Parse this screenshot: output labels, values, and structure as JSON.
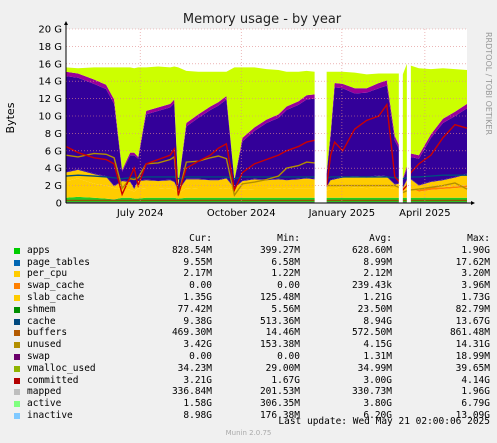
{
  "chart_data": {
    "type": "area",
    "title": "Memory usage - by year",
    "ylabel": "Bytes",
    "ylim": [
      0,
      20
    ],
    "y_unit": "G",
    "y_ticks": [
      "0",
      "2 G",
      "4 G",
      "6 G",
      "8 G",
      "10 G",
      "12 G",
      "14 G",
      "16 G",
      "18 G",
      "20 G"
    ],
    "x_ticks": [
      "July 2024",
      "October 2024",
      "January 2025",
      "April 2025"
    ],
    "x_tick_pos": [
      0.185,
      0.437,
      0.688,
      0.895
    ],
    "grid": true,
    "legend_position": "bottom",
    "side_text": "RRDTOOL / TOBI OETIKER",
    "x": [
      0.0,
      0.03,
      0.07,
      0.1,
      0.12,
      0.14,
      0.16,
      0.17,
      0.18,
      0.2,
      0.23,
      0.26,
      0.27,
      0.28,
      0.3,
      0.33,
      0.36,
      0.38,
      0.4,
      0.42,
      0.44,
      0.47,
      0.5,
      0.53,
      0.55,
      0.58,
      0.6,
      0.62,
      0.63,
      0.65,
      0.66,
      0.67,
      0.69,
      0.72,
      0.75,
      0.78,
      0.8,
      0.82,
      0.83,
      0.84,
      0.85,
      0.86,
      0.88,
      0.91,
      0.94,
      0.97,
      1.0
    ],
    "gaps": [
      [
        0.62,
        0.65
      ],
      [
        0.83,
        0.84
      ],
      [
        0.85,
        0.86
      ]
    ],
    "series": [
      {
        "name": "apps",
        "color": "#22cc22",
        "values": [
          0.6,
          0.7,
          0.6,
          0.5,
          0.4,
          0.6,
          0.6,
          0.5,
          0.5,
          0.6,
          0.6,
          0.6,
          0.6,
          0.5,
          0.6,
          0.6,
          0.6,
          0.6,
          0.6,
          0.6,
          0.6,
          0.6,
          0.6,
          0.6,
          0.6,
          0.6,
          0.6,
          0.6,
          0.6,
          0.6,
          0.6,
          0.6,
          0.6,
          0.6,
          0.6,
          0.6,
          0.6,
          0.6,
          0.6,
          0.6,
          0.6,
          0.6,
          0.6,
          0.6,
          0.6,
          0.6,
          0.6
        ]
      },
      {
        "name": "page_tables",
        "color": "#0066b3",
        "values": [
          0.01,
          0.01,
          0.01,
          0.01,
          0.01,
          0.01,
          0.01,
          0.01,
          0.01,
          0.01,
          0.01,
          0.01,
          0.01,
          0.01,
          0.01,
          0.01,
          0.01,
          0.01,
          0.01,
          0.01,
          0.01,
          0.01,
          0.01,
          0.01,
          0.01,
          0.01,
          0.01,
          0.01,
          0.01,
          0.01,
          0.01,
          0.01,
          0.01,
          0.01,
          0.01,
          0.01,
          0.01,
          0.01,
          0.01,
          0.01,
          0.01,
          0.01,
          0.01,
          0.01,
          0.01,
          0.01,
          0.01
        ]
      },
      {
        "name": "per_cpu",
        "color": "#ffcc00",
        "values": [
          1.9,
          2.1,
          1.6,
          1.5,
          1.3,
          1.0,
          0.9,
          0.8,
          1.2,
          1.0,
          1.0,
          1.1,
          0.9,
          0.6,
          1.1,
          1.0,
          1.0,
          1.0,
          1.1,
          0.9,
          0.9,
          1.0,
          1.0,
          1.1,
          1.0,
          1.1,
          1.1,
          1.1,
          1.1,
          0.8,
          1.0,
          1.0,
          1.3,
          1.2,
          1.1,
          1.2,
          1.2,
          1.0,
          1.0,
          0.8,
          1.0,
          1.1,
          0.7,
          0.9,
          1.0,
          1.1,
          1.2
        ]
      },
      {
        "name": "swap_cache",
        "color": "#ff8000",
        "values": [
          0.0,
          0.0,
          0.0,
          0.0,
          0.0,
          0.0,
          0.0,
          0.0,
          0.0,
          0.0,
          0.0,
          0.0,
          0.0,
          0.0,
          0.0,
          0.0,
          0.0,
          0.0,
          0.0,
          0.0,
          0.0,
          0.0,
          0.0,
          0.0,
          0.0,
          0.0,
          0.0,
          0.0,
          0.0,
          0.0,
          0.0,
          0.0,
          0.0,
          0.0,
          0.0,
          0.0,
          0.0,
          0.0,
          0.0,
          0.0,
          0.0,
          0.0,
          0.2,
          0.3,
          0.2,
          0.2,
          0.2
        ]
      },
      {
        "name": "slab_cache",
        "color": "#ffcc00",
        "values": [
          1.0,
          1.0,
          1.1,
          1.0,
          0.2,
          0.9,
          0.9,
          0.3,
          0.8,
          1.0,
          0.9,
          0.9,
          0.9,
          0.3,
          1.0,
          1.1,
          1.0,
          1.0,
          1.1,
          0.2,
          1.0,
          1.1,
          1.0,
          1.0,
          1.0,
          1.0,
          1.1,
          1.0,
          1.0,
          0.4,
          1.0,
          1.1,
          1.0,
          1.2,
          1.2,
          1.3,
          1.2,
          0.5,
          0.6,
          0.3,
          1.0,
          1.0,
          0.5,
          0.6,
          0.8,
          1.0,
          1.3
        ]
      },
      {
        "name": "shmem",
        "color": "#330099",
        "values": [
          0.08,
          0.08,
          0.08,
          0.08,
          0.08,
          0.08,
          0.08,
          0.08,
          0.08,
          0.08,
          0.08,
          0.08,
          0.08,
          0.08,
          0.08,
          0.08,
          0.08,
          0.08,
          0.08,
          0.08,
          0.08,
          0.08,
          0.08,
          0.08,
          0.08,
          0.08,
          0.08,
          0.08,
          0.08,
          0.08,
          0.08,
          0.08,
          0.08,
          0.08,
          0.08,
          0.08,
          0.08,
          0.08,
          0.08,
          0.08,
          0.08,
          0.08,
          0.08,
          0.08,
          0.08,
          0.08,
          0.08
        ]
      },
      {
        "name": "cache",
        "color": "#330099",
        "values": [
          11.0,
          10.5,
          10.3,
          10.0,
          9.4,
          1.0,
          3.0,
          3.8,
          2.5,
          7.5,
          8.0,
          8.3,
          9.0,
          0.5,
          6.0,
          7.0,
          8.0,
          8.5,
          9.0,
          0.8,
          4.5,
          5.5,
          6.5,
          7.0,
          8.0,
          8.5,
          9.0,
          9.2,
          9.2,
          1.5,
          5.0,
          10.5,
          10.2,
          9.5,
          9.7,
          10.0,
          10.4,
          5.0,
          4.0,
          0.8,
          1.2,
          2.5,
          3.0,
          5.0,
          6.5,
          7.0,
          7.5
        ]
      },
      {
        "name": "buffers",
        "color": "#990099",
        "values": [
          0.5,
          0.5,
          0.5,
          0.5,
          0.5,
          0.2,
          0.3,
          0.3,
          0.2,
          0.4,
          0.4,
          0.4,
          0.4,
          0.1,
          0.4,
          0.4,
          0.4,
          0.4,
          0.4,
          0.1,
          0.4,
          0.4,
          0.4,
          0.4,
          0.4,
          0.4,
          0.5,
          0.5,
          0.5,
          0.2,
          0.5,
          0.5,
          0.5,
          0.6,
          0.5,
          0.6,
          0.6,
          0.5,
          0.4,
          0.2,
          0.3,
          0.4,
          0.4,
          0.4,
          0.5,
          0.5,
          0.5
        ]
      },
      {
        "name": "unused",
        "color": "#ccff00",
        "values": [
          0.5,
          0.6,
          1.4,
          2.0,
          3.7,
          11.8,
          9.8,
          9.7,
          10.3,
          5.0,
          4.7,
          4.2,
          3.8,
          13.5,
          6.0,
          4.9,
          4.0,
          3.5,
          2.8,
          12.9,
          8.1,
          6.9,
          5.8,
          5.1,
          4.0,
          3.4,
          2.8,
          2.6,
          2.6,
          11.5,
          6.9,
          1.3,
          1.4,
          1.8,
          1.6,
          1.1,
          0.8,
          7.2,
          8.2,
          12.0,
          11.8,
          10.1,
          10.0,
          7.5,
          5.8,
          4.9,
          3.9
        ]
      },
      {
        "name": "swap",
        "color": "#ff0000",
        "values": [
          0,
          0,
          0,
          0,
          0,
          0,
          0,
          0,
          0,
          0,
          0,
          0,
          0,
          0,
          0,
          0,
          0,
          0,
          0,
          0,
          0,
          0,
          0,
          0,
          0,
          0,
          0,
          0,
          0,
          0,
          0,
          0,
          0,
          0,
          0,
          0,
          0,
          0,
          0,
          0,
          0,
          0,
          0,
          0,
          0,
          0,
          0
        ]
      },
      {
        "name": "vmalloc_used",
        "color": "#808080",
        "values": [
          0.03,
          0.03,
          0.03,
          0.03,
          0.03,
          0.03,
          0.03,
          0.03,
          0.03,
          0.03,
          0.03,
          0.03,
          0.03,
          0.03,
          0.03,
          0.03,
          0.03,
          0.03,
          0.03,
          0.03,
          0.03,
          0.03,
          0.03,
          0.03,
          0.03,
          0.03,
          0.03,
          0.03,
          0.03,
          0.03,
          0.03,
          0.03,
          0.03,
          0.03,
          0.03,
          0.03,
          0.03,
          0.03,
          0.03,
          0.03,
          0.03,
          0.03,
          0.03,
          0.03,
          0.03,
          0.03,
          0.03
        ]
      },
      {
        "name": "committed",
        "color": "#004d80",
        "values": [
          3.1,
          3.2,
          3.1,
          3.0,
          2.9,
          2.8,
          2.9,
          2.9,
          2.9,
          3.0,
          3.0,
          3.0,
          3.0,
          2.8,
          3.0,
          3.0,
          3.0,
          3.0,
          3.0,
          2.8,
          3.0,
          3.0,
          3.0,
          3.0,
          3.0,
          3.0,
          3.0,
          3.0,
          3.0,
          2.8,
          3.0,
          3.0,
          3.0,
          3.0,
          3.0,
          3.0,
          3.0,
          2.9,
          2.9,
          2.8,
          2.9,
          3.0,
          3.0,
          3.1,
          3.2,
          3.2,
          3.2
        ]
      },
      {
        "name": "mapped",
        "color": "#8f5a00",
        "values": [
          0.3,
          0.3,
          0.3,
          0.3,
          0.3,
          0.3,
          0.3,
          0.3,
          0.3,
          0.3,
          0.3,
          0.3,
          0.3,
          0.3,
          0.3,
          0.3,
          0.3,
          0.3,
          0.3,
          0.3,
          0.3,
          0.3,
          0.3,
          0.3,
          0.3,
          0.3,
          0.3,
          0.3,
          0.3,
          0.3,
          0.3,
          0.3,
          0.3,
          0.3,
          0.3,
          0.3,
          0.3,
          0.3,
          0.3,
          0.3,
          0.3,
          0.3,
          0.3,
          0.3,
          0.3,
          0.3,
          0.3
        ]
      },
      {
        "name": "active",
        "color": "#b38f00",
        "values": [
          5.5,
          5.3,
          5.7,
          5.6,
          5.2,
          1.7,
          2.8,
          2.7,
          2.9,
          4.5,
          4.6,
          5.0,
          5.3,
          0.8,
          4.7,
          4.8,
          5.2,
          5.4,
          5.1,
          0.9,
          2.2,
          2.4,
          2.7,
          3.1,
          4.0,
          4.3,
          4.7,
          4.6,
          4.6,
          2.0,
          2.0,
          2.0,
          2.0,
          2.0,
          2.0,
          2.0,
          2.0,
          2.0,
          1.8,
          1.2,
          1.4,
          1.5,
          1.6,
          1.8,
          2.0,
          2.3,
          1.6
        ]
      },
      {
        "name": "inactive",
        "color": "#cc0000",
        "values": [
          6.5,
          5.8,
          5.2,
          5.0,
          4.5,
          1.0,
          3.0,
          4.0,
          2.0,
          4.5,
          5.0,
          5.5,
          6.2,
          0.9,
          4.0,
          4.8,
          5.5,
          6.3,
          6.8,
          1.5,
          3.5,
          4.5,
          5.0,
          5.5,
          6.0,
          6.5,
          7.0,
          7.2,
          7.2,
          2.0,
          5.5,
          7.0,
          6.0,
          8.5,
          9.5,
          10.0,
          11.3,
          3.0,
          2.5,
          1.5,
          2.0,
          3.5,
          4.5,
          5.5,
          7.5,
          9.0,
          8.6
        ]
      }
    ]
  },
  "legend": {
    "headers": {
      "cur": "Cur:",
      "min": "Min:",
      "avg": "Avg:",
      "max": "Max:"
    },
    "rows": [
      {
        "name": "apps",
        "color": "#00cc00",
        "cur": "828.54M",
        "min": "399.27M",
        "avg": "628.60M",
        "max": "1.90G"
      },
      {
        "name": "page_tables",
        "color": "#0066b3",
        "cur": "9.55M",
        "min": "6.58M",
        "avg": "8.99M",
        "max": "17.62M"
      },
      {
        "name": "per_cpu",
        "color": "#ffcc00",
        "cur": "2.17M",
        "min": "1.22M",
        "avg": "2.12M",
        "max": "3.20M"
      },
      {
        "name": "swap_cache",
        "color": "#ff8000",
        "cur": "0.00",
        "min": "0.00",
        "avg": "239.43k",
        "max": "3.96M"
      },
      {
        "name": "slab_cache",
        "color": "#ffcc00",
        "cur": "1.35G",
        "min": "125.48M",
        "avg": "1.21G",
        "max": "1.73G"
      },
      {
        "name": "shmem",
        "color": "#008f00",
        "cur": "77.42M",
        "min": "5.56M",
        "avg": "23.50M",
        "max": "82.79M"
      },
      {
        "name": "cache",
        "color": "#00487d",
        "cur": "9.38G",
        "min": "513.36M",
        "avg": "8.94G",
        "max": "13.67G"
      },
      {
        "name": "buffers",
        "color": "#b35a00",
        "cur": "469.30M",
        "min": "14.46M",
        "avg": "572.50M",
        "max": "861.48M"
      },
      {
        "name": "unused",
        "color": "#b38f00",
        "cur": "3.42G",
        "avg": "4.15G",
        "min": "153.38M",
        "max": "14.31G"
      },
      {
        "name": "swap",
        "color": "#6b006b",
        "cur": "0.00",
        "min": "0.00",
        "avg": "1.31M",
        "max": "18.99M"
      },
      {
        "name": "vmalloc_used",
        "color": "#8fb300",
        "cur": "34.23M",
        "min": "29.00M",
        "avg": "34.99M",
        "max": "39.65M"
      },
      {
        "name": "committed",
        "color": "#b30000",
        "cur": "3.21G",
        "min": "1.67G",
        "avg": "3.00G",
        "max": "4.14G"
      },
      {
        "name": "mapped",
        "color": "#bebebe",
        "cur": "336.84M",
        "min": "201.53M",
        "avg": "330.73M",
        "max": "1.96G"
      },
      {
        "name": "active",
        "color": "#80ff80",
        "cur": "1.58G",
        "min": "306.35M",
        "avg": "3.80G",
        "max": "6.79G"
      },
      {
        "name": "inactive",
        "color": "#80c9ff",
        "cur": "8.98G",
        "min": "176.38M",
        "avg": "6.20G",
        "max": "13.09G"
      }
    ]
  },
  "footer": {
    "last_update": "Last update: Wed May 21 02:00:06 2025",
    "version": "Munin 2.0.75"
  }
}
